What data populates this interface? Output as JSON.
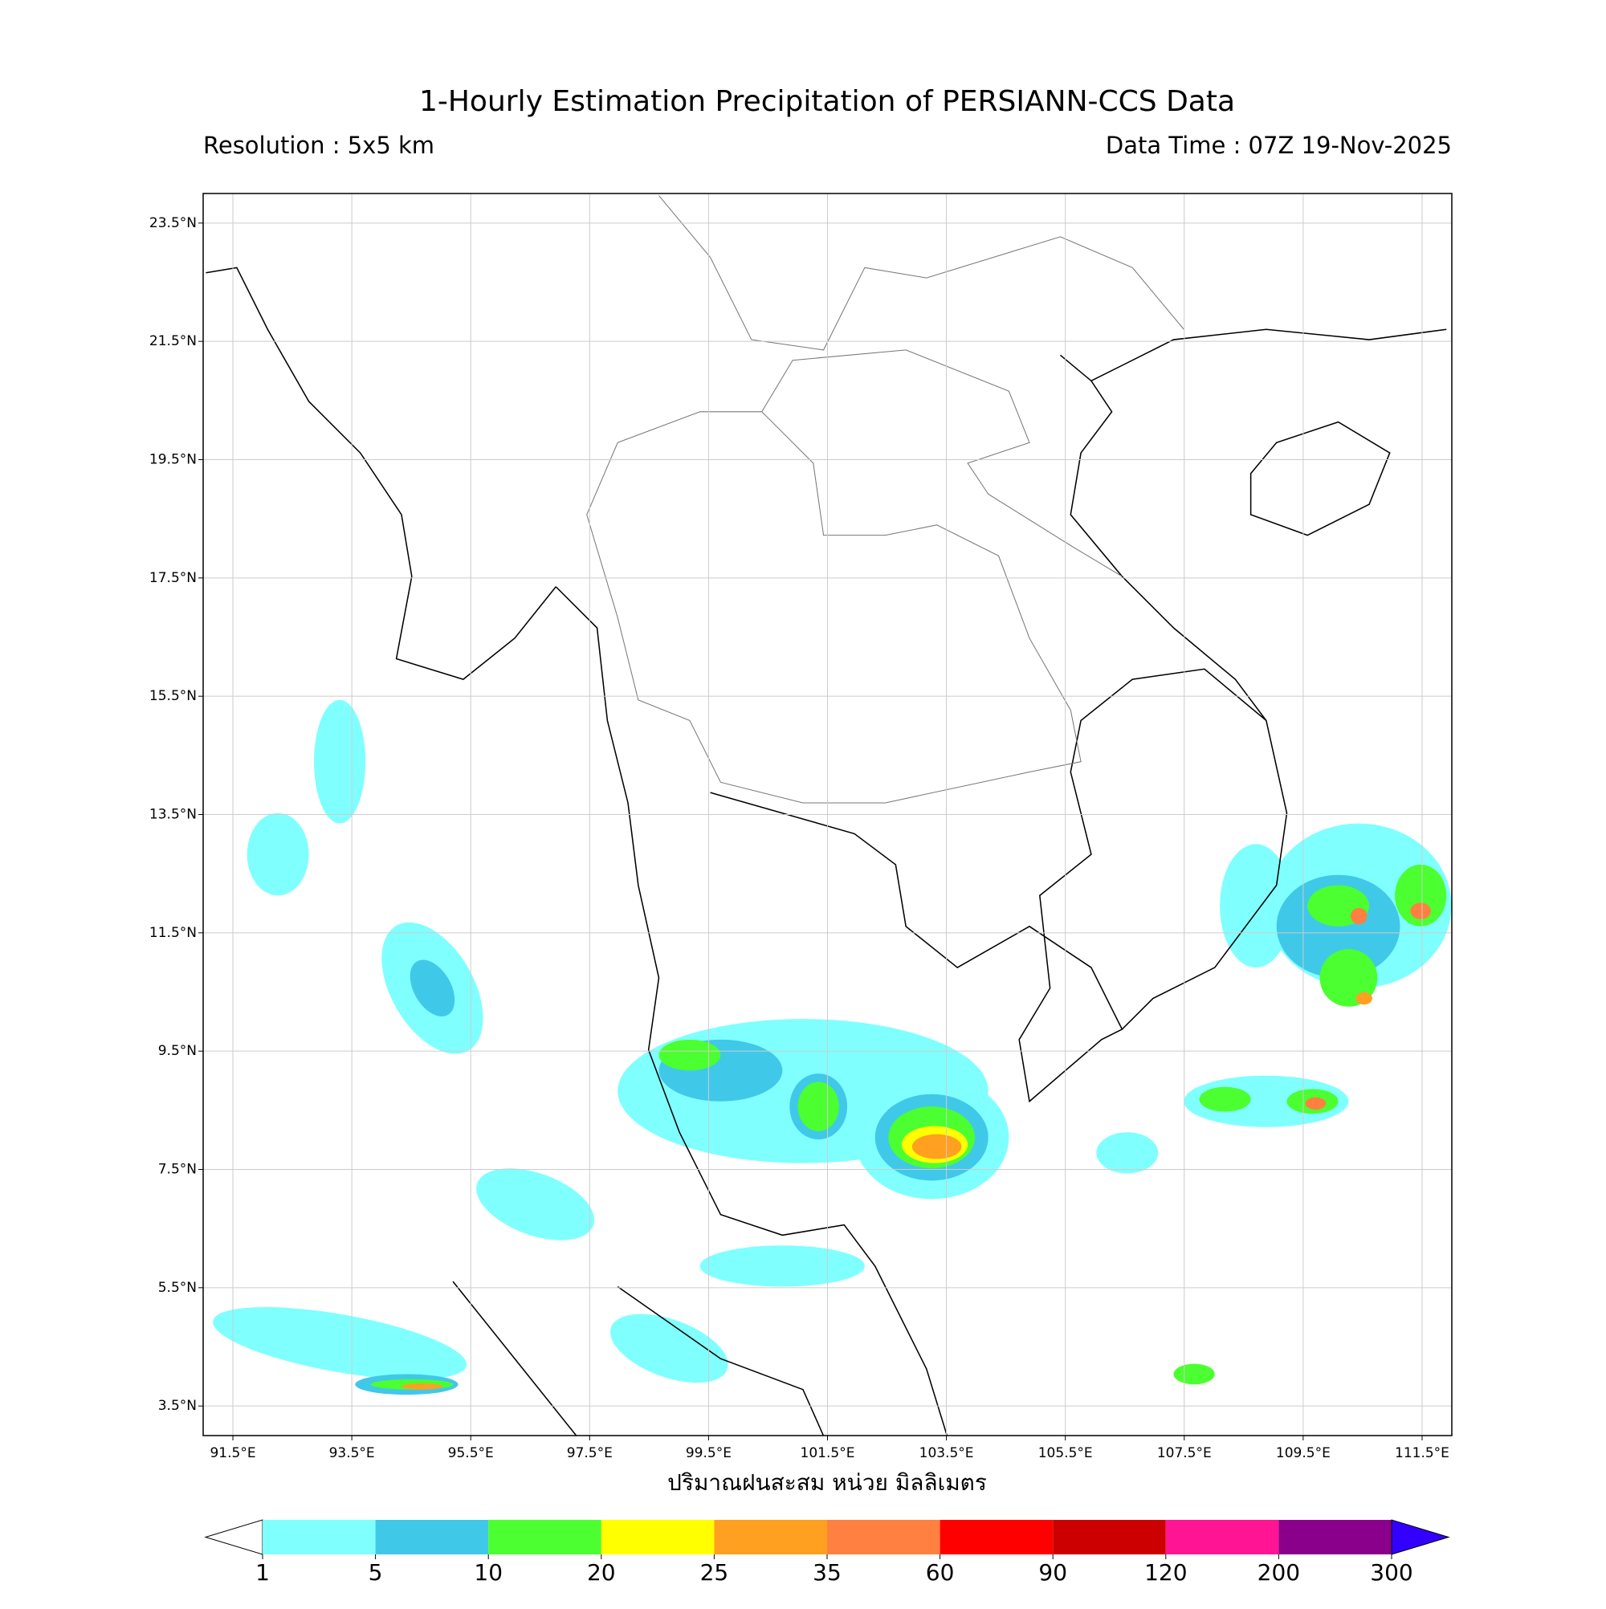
{
  "map": {
    "title": "1-Hourly Estimation Precipitation of PERSIANN-CCS Data",
    "subtitle_left": "Resolution : 5x5 km",
    "subtitle_right": "Data Time : 07Z 19-Nov-2025",
    "lonlim": [
      91,
      112
    ],
    "latlim": [
      3,
      24
    ],
    "lon_ticks": [
      {
        "value": 91.5,
        "label": "91.5°E"
      },
      {
        "value": 93.5,
        "label": "93.5°E"
      },
      {
        "value": 95.5,
        "label": "95.5°E"
      },
      {
        "value": 97.5,
        "label": "97.5°E"
      },
      {
        "value": 99.5,
        "label": "99.5°E"
      },
      {
        "value": 101.5,
        "label": "101.5°E"
      },
      {
        "value": 103.5,
        "label": "103.5°E"
      },
      {
        "value": 105.5,
        "label": "105.5°E"
      },
      {
        "value": 107.5,
        "label": "107.5°E"
      },
      {
        "value": 109.5,
        "label": "109.5°E"
      },
      {
        "value": 111.5,
        "label": "111.5°E"
      }
    ],
    "lat_ticks": [
      {
        "value": 23.5,
        "label": "23.5°N"
      },
      {
        "value": 21.5,
        "label": "21.5°N"
      },
      {
        "value": 19.5,
        "label": "19.5°N"
      },
      {
        "value": 17.5,
        "label": "17.5°N"
      },
      {
        "value": 15.5,
        "label": "15.5°N"
      },
      {
        "value": 13.5,
        "label": "13.5°N"
      },
      {
        "value": 11.5,
        "label": "11.5°N"
      },
      {
        "value": 9.5,
        "label": "9.5°N"
      },
      {
        "value": 7.5,
        "label": "7.5°N"
      },
      {
        "value": 5.5,
        "label": "5.5°N"
      },
      {
        "value": 3.5,
        "label": "3.5°N"
      }
    ],
    "grid": true,
    "colorbar_label": "ปริมาณฝนสะสม หน่วย มิลลิเมตร",
    "levels": [
      1,
      5,
      10,
      20,
      25,
      35,
      60,
      90,
      120,
      200,
      300
    ],
    "colors": [
      "#80ffff",
      "#40c8e8",
      "#4cff30",
      "#ffff00",
      "#ffa020",
      "#ff8040",
      "#ff0000",
      "#cc0000",
      "#ff1493",
      "#8b008b"
    ],
    "under_color": "#ffffff",
    "over_color": "#3300ff"
  }
}
